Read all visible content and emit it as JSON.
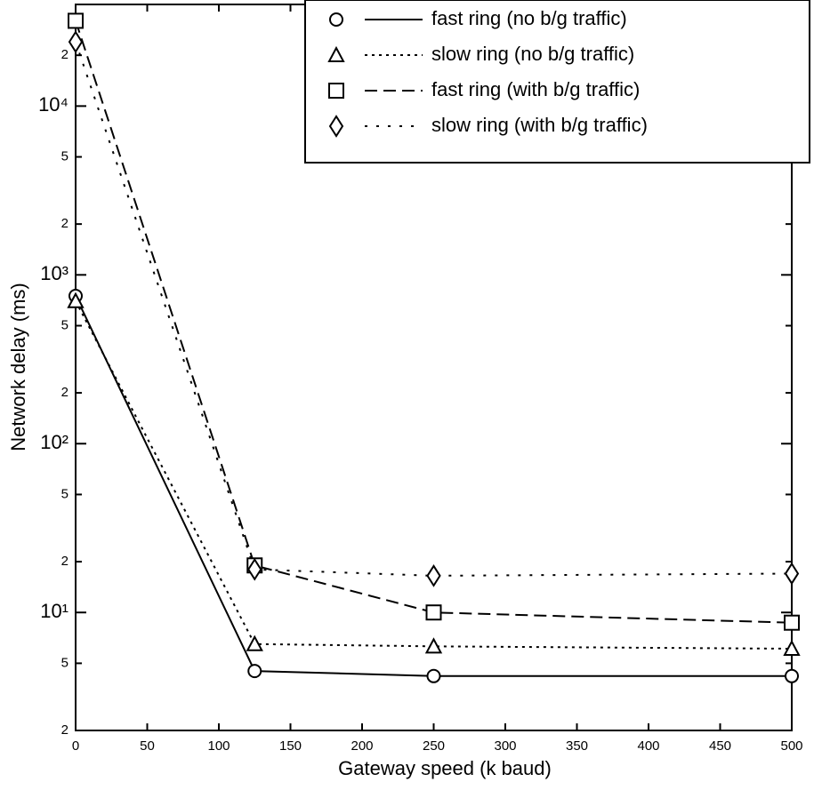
{
  "chart_data": {
    "type": "line",
    "x_label": "Gateway speed (k baud)",
    "y_label": "Network delay (ms)",
    "x": [
      0,
      125,
      250,
      500
    ],
    "xlim": [
      0,
      500
    ],
    "xticks": [
      0,
      50,
      100,
      150,
      200,
      250,
      300,
      350,
      400,
      450,
      500
    ],
    "ylim": [
      2,
      40000
    ],
    "y_scale": "log",
    "yticks": [
      2,
      5,
      {
        "value": 10,
        "label": "10¹"
      },
      {
        "value": 20,
        "label": "2"
      },
      {
        "value": 50,
        "label": "5"
      },
      {
        "value": 100,
        "label": "10²"
      },
      {
        "value": 200,
        "label": "2"
      },
      {
        "value": 500,
        "label": "5"
      },
      {
        "value": 1000,
        "label": "10³"
      },
      {
        "value": 2000,
        "label": "2"
      },
      {
        "value": 5000,
        "label": "5"
      },
      {
        "value": 10000,
        "label": "10⁴"
      },
      {
        "value": 20000,
        "label": "2"
      }
    ],
    "legend": "upper right",
    "series": [
      {
        "name": "fast ring (no b/g traffic)",
        "color": "#000000",
        "marker": "circle",
        "line_style": "solid",
        "values": [
          750,
          4.5,
          4.2,
          4.2
        ]
      },
      {
        "name": "slow ring (no b/g traffic)",
        "color": "#000000",
        "marker": "triangle",
        "line_style": "dotted",
        "values": [
          700,
          6.5,
          6.3,
          6.1
        ]
      },
      {
        "name": "fast ring (with b/g traffic)",
        "color": "#000000",
        "marker": "square",
        "line_style": "dashed",
        "values": [
          32000,
          19,
          10,
          8.7
        ]
      },
      {
        "name": "slow ring (with b/g traffic)",
        "color": "#000000",
        "marker": "diamond",
        "line_style": "sparse-dotted",
        "values": [
          24000,
          18,
          16.5,
          17
        ]
      }
    ]
  }
}
